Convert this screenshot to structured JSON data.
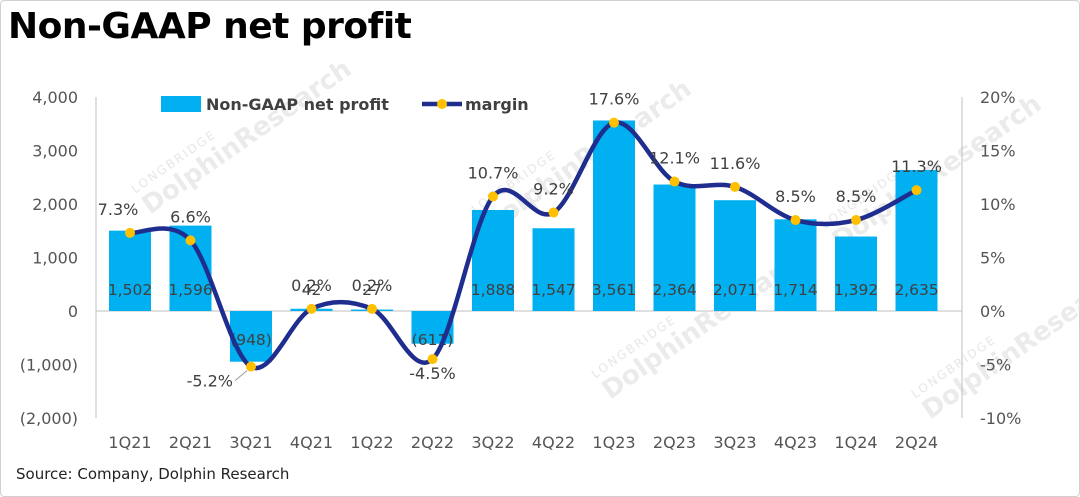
{
  "title": "Non-GAAP net profit",
  "source": "Source: Company, Dolphin Research",
  "watermark": {
    "brand": "LONGBRIDGE",
    "name": "DolphinResearch"
  },
  "colors": {
    "bar": "#00b0f0",
    "line": "#1f2d8f",
    "marker": "#ffc000"
  },
  "chart_data": {
    "type": "bar",
    "categories": [
      "1Q21",
      "2Q21",
      "3Q21",
      "4Q21",
      "1Q22",
      "2Q22",
      "3Q22",
      "4Q22",
      "1Q23",
      "2Q23",
      "3Q23",
      "4Q23",
      "1Q24",
      "2Q24"
    ],
    "series": [
      {
        "name": "Non-GAAP net profit",
        "type": "bar",
        "axis": "left",
        "values": [
          1502,
          1596,
          -948,
          42,
          27,
          -611,
          1888,
          1547,
          3561,
          2364,
          2071,
          1714,
          1392,
          2635
        ],
        "labels": [
          "1,502",
          "1,596",
          "(948)",
          "42",
          "27",
          "(611)",
          "1,888",
          "1,547",
          "3,561",
          "2,364",
          "2,071",
          "1,714",
          "1,392",
          "2,635"
        ]
      },
      {
        "name": "margin",
        "type": "line",
        "axis": "right",
        "smooth": true,
        "values": [
          7.3,
          6.6,
          -5.2,
          0.2,
          0.2,
          -4.5,
          10.7,
          9.2,
          17.6,
          12.1,
          11.6,
          8.5,
          8.5,
          11.3
        ],
        "labels": [
          "7.3%",
          "6.6%",
          "-5.2%",
          "0.2%",
          "0.2%",
          "-4.5%",
          "10.7%",
          "9.2%",
          "17.6%",
          "12.1%",
          "11.6%",
          "8.5%",
          "8.5%",
          "11.3%"
        ]
      }
    ],
    "ylim": [
      -2000,
      4000
    ],
    "y_ticks": [
      4000,
      3000,
      2000,
      1000,
      0,
      -1000,
      -2000
    ],
    "y_tick_labels": [
      "4,000",
      "3,000",
      "2,000",
      "1,000",
      "0",
      "(1,000)",
      "(2,000)"
    ],
    "y2lim": [
      -10,
      20
    ],
    "y2_ticks": [
      20,
      15,
      10,
      5,
      0,
      -5,
      -10
    ],
    "y2_tick_labels": [
      "20%",
      "15%",
      "10%",
      "5%",
      "0%",
      "-5%",
      "-10%"
    ],
    "legend": {
      "position": "top-left",
      "entries": [
        "Non-GAAP net profit",
        "margin"
      ]
    },
    "grid": false
  }
}
